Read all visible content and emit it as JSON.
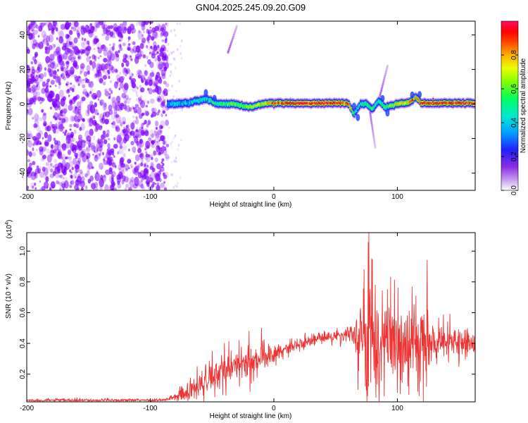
{
  "figure": {
    "title": "GN04.2025.245.09.20.G09"
  },
  "chart_data": [
    {
      "type": "heatmap",
      "title": "GN04.2025.245.09.20.G09",
      "xlabel": "Height of straight line (km)",
      "ylabel": "Frequency (Hz)",
      "xlim": [
        -200,
        163
      ],
      "ylim": [
        -50,
        48
      ],
      "x_ticks": [
        -200,
        -100,
        0,
        100
      ],
      "y_ticks": [
        -40,
        -20,
        0,
        20,
        40
      ],
      "grid": false,
      "colorbar": {
        "label": "Normalized spectral amplitude",
        "range": [
          0.0,
          1.0
        ],
        "ticks": [
          0.0,
          0.2,
          0.4,
          0.6,
          0.8
        ],
        "colormap": [
          "#ffffff",
          "#8a2be2",
          "#0000ff",
          "#00bfff",
          "#00ff80",
          "#80ff00",
          "#ffff00",
          "#ff8000",
          "#ff0000",
          "#ff1493"
        ]
      },
      "noise_region": {
        "x_range": [
          -200,
          -86
        ],
        "amplitude": [
          0.1,
          0.45
        ],
        "color": "#7f00ff"
      },
      "ridge": [
        [
          -86,
          0
        ],
        [
          -70,
          0.5
        ],
        [
          -55,
          3
        ],
        [
          -45,
          0
        ],
        [
          -30,
          0
        ],
        [
          -20,
          -2
        ],
        [
          -10,
          0
        ],
        [
          0,
          0.5
        ],
        [
          20,
          0.5
        ],
        [
          40,
          0.5
        ],
        [
          60,
          0.5
        ],
        [
          65,
          -6
        ],
        [
          70,
          0
        ],
        [
          75,
          0
        ],
        [
          80,
          -3
        ],
        [
          85,
          2
        ],
        [
          90,
          -2
        ],
        [
          95,
          -1
        ],
        [
          100,
          0
        ],
        [
          110,
          1
        ],
        [
          115,
          4
        ],
        [
          120,
          0.5
        ],
        [
          140,
          0.5
        ],
        [
          163,
          0.5
        ]
      ],
      "ridge_amplitude": [
        [
          -86,
          0.35
        ],
        [
          -60,
          0.45
        ],
        [
          -40,
          0.55
        ],
        [
          -10,
          0.7
        ],
        [
          0,
          0.85
        ],
        [
          20,
          0.95
        ],
        [
          60,
          0.9
        ],
        [
          66,
          0.45
        ],
        [
          75,
          0.5
        ],
        [
          90,
          0.55
        ],
        [
          100,
          0.7
        ],
        [
          120,
          0.9
        ],
        [
          163,
          0.9
        ]
      ],
      "streaks": [
        {
          "x": [
            -37,
            -30
          ],
          "y": [
            30,
            45
          ]
        },
        {
          "x": [
            78,
            82
          ],
          "y": [
            -5,
            -25
          ]
        },
        {
          "x": [
            86,
            92
          ],
          "y": [
            5,
            22
          ]
        }
      ]
    },
    {
      "type": "line",
      "xlabel": "Height of straight line (km)",
      "ylabel": "SNR (10 * v/v)",
      "y_scale_label": "(x10",
      "y_scale_exp": "4",
      "y_scale_close": ")",
      "xlim": [
        -200,
        163
      ],
      "ylim": [
        0.02,
        1.12
      ],
      "x_ticks": [
        -200,
        -100,
        0,
        100
      ],
      "y_ticks": [
        0.2,
        0.4,
        0.6,
        0.8,
        1.0
      ],
      "grid": false,
      "series": [
        {
          "color": "#ee3333",
          "envelope": [
            [
              -200,
              0.03
            ],
            [
              -90,
              0.03
            ],
            [
              -80,
              0.05
            ],
            [
              -60,
              0.12
            ],
            [
              -40,
              0.22
            ],
            [
              -20,
              0.28
            ],
            [
              0,
              0.33
            ],
            [
              20,
              0.4
            ],
            [
              40,
              0.44
            ],
            [
              60,
              0.45
            ],
            [
              70,
              0.45
            ],
            [
              80,
              0.4
            ],
            [
              100,
              0.4
            ],
            [
              120,
              0.38
            ],
            [
              140,
              0.4
            ],
            [
              163,
              0.4
            ]
          ],
          "noise_std": [
            [
              -200,
              0.005
            ],
            [
              -85,
              0.006
            ],
            [
              -75,
              0.03
            ],
            [
              -40,
              0.06
            ],
            [
              -20,
              0.06
            ],
            [
              0,
              0.03
            ],
            [
              40,
              0.02
            ],
            [
              65,
              0.03
            ],
            [
              75,
              0.22
            ],
            [
              85,
              0.18
            ],
            [
              100,
              0.14
            ],
            [
              120,
              0.12
            ],
            [
              130,
              0.06
            ],
            [
              163,
              0.04
            ]
          ],
          "peaks": [
            [
              -62,
              0.25
            ],
            [
              -50,
              0.35
            ],
            [
              -40,
              0.4
            ],
            [
              -28,
              0.42
            ],
            [
              -20,
              0.48
            ],
            [
              -10,
              0.5
            ],
            [
              73,
              0.88
            ],
            [
              77,
              1.12
            ],
            [
              82,
              0.78
            ],
            [
              92,
              0.75
            ],
            [
              103,
              0.58
            ],
            [
              108,
              0.58
            ],
            [
              124,
              0.94
            ],
            [
              76,
              0.06
            ],
            [
              100,
              0.08
            ],
            [
              121,
              0.02
            ],
            [
              68,
              0.1
            ]
          ]
        }
      ]
    }
  ]
}
